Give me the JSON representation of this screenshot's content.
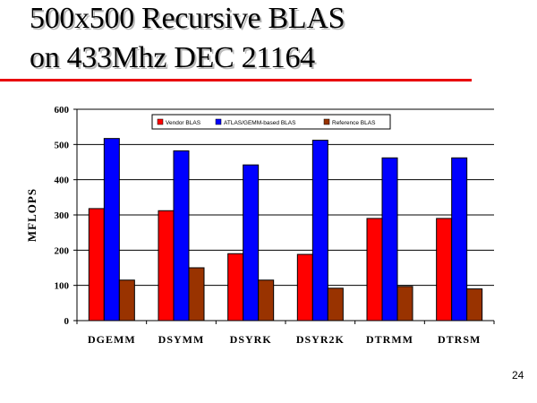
{
  "slide": {
    "title_line1": "500x500 Recursive BLAS",
    "title_line2": "on 433Mhz DEC 21164",
    "page_number": "24",
    "accent_color": "#e8000b"
  },
  "chart_data": {
    "type": "bar",
    "categories": [
      "DGEMM",
      "DSYMM",
      "DSYRK",
      "DSYR2K",
      "DTRMM",
      "DTRSM"
    ],
    "series": [
      {
        "name": "Vendor BLAS",
        "color": "#ff0000",
        "values": [
          318,
          312,
          190,
          188,
          290,
          290
        ]
      },
      {
        "name": "ATLAS/GEMM-based BLAS",
        "color": "#0000ff",
        "values": [
          517,
          482,
          442,
          512,
          462,
          462
        ]
      },
      {
        "name": "Reference BLAS",
        "color": "#993300",
        "values": [
          115,
          150,
          115,
          92,
          97,
          90
        ]
      }
    ],
    "ylabel": "MFLOPS",
    "xlabel": "",
    "ylim": [
      0,
      600
    ],
    "yticks": [
      0,
      100,
      200,
      300,
      400,
      500,
      600
    ],
    "grid": true,
    "legend_position": "top"
  }
}
